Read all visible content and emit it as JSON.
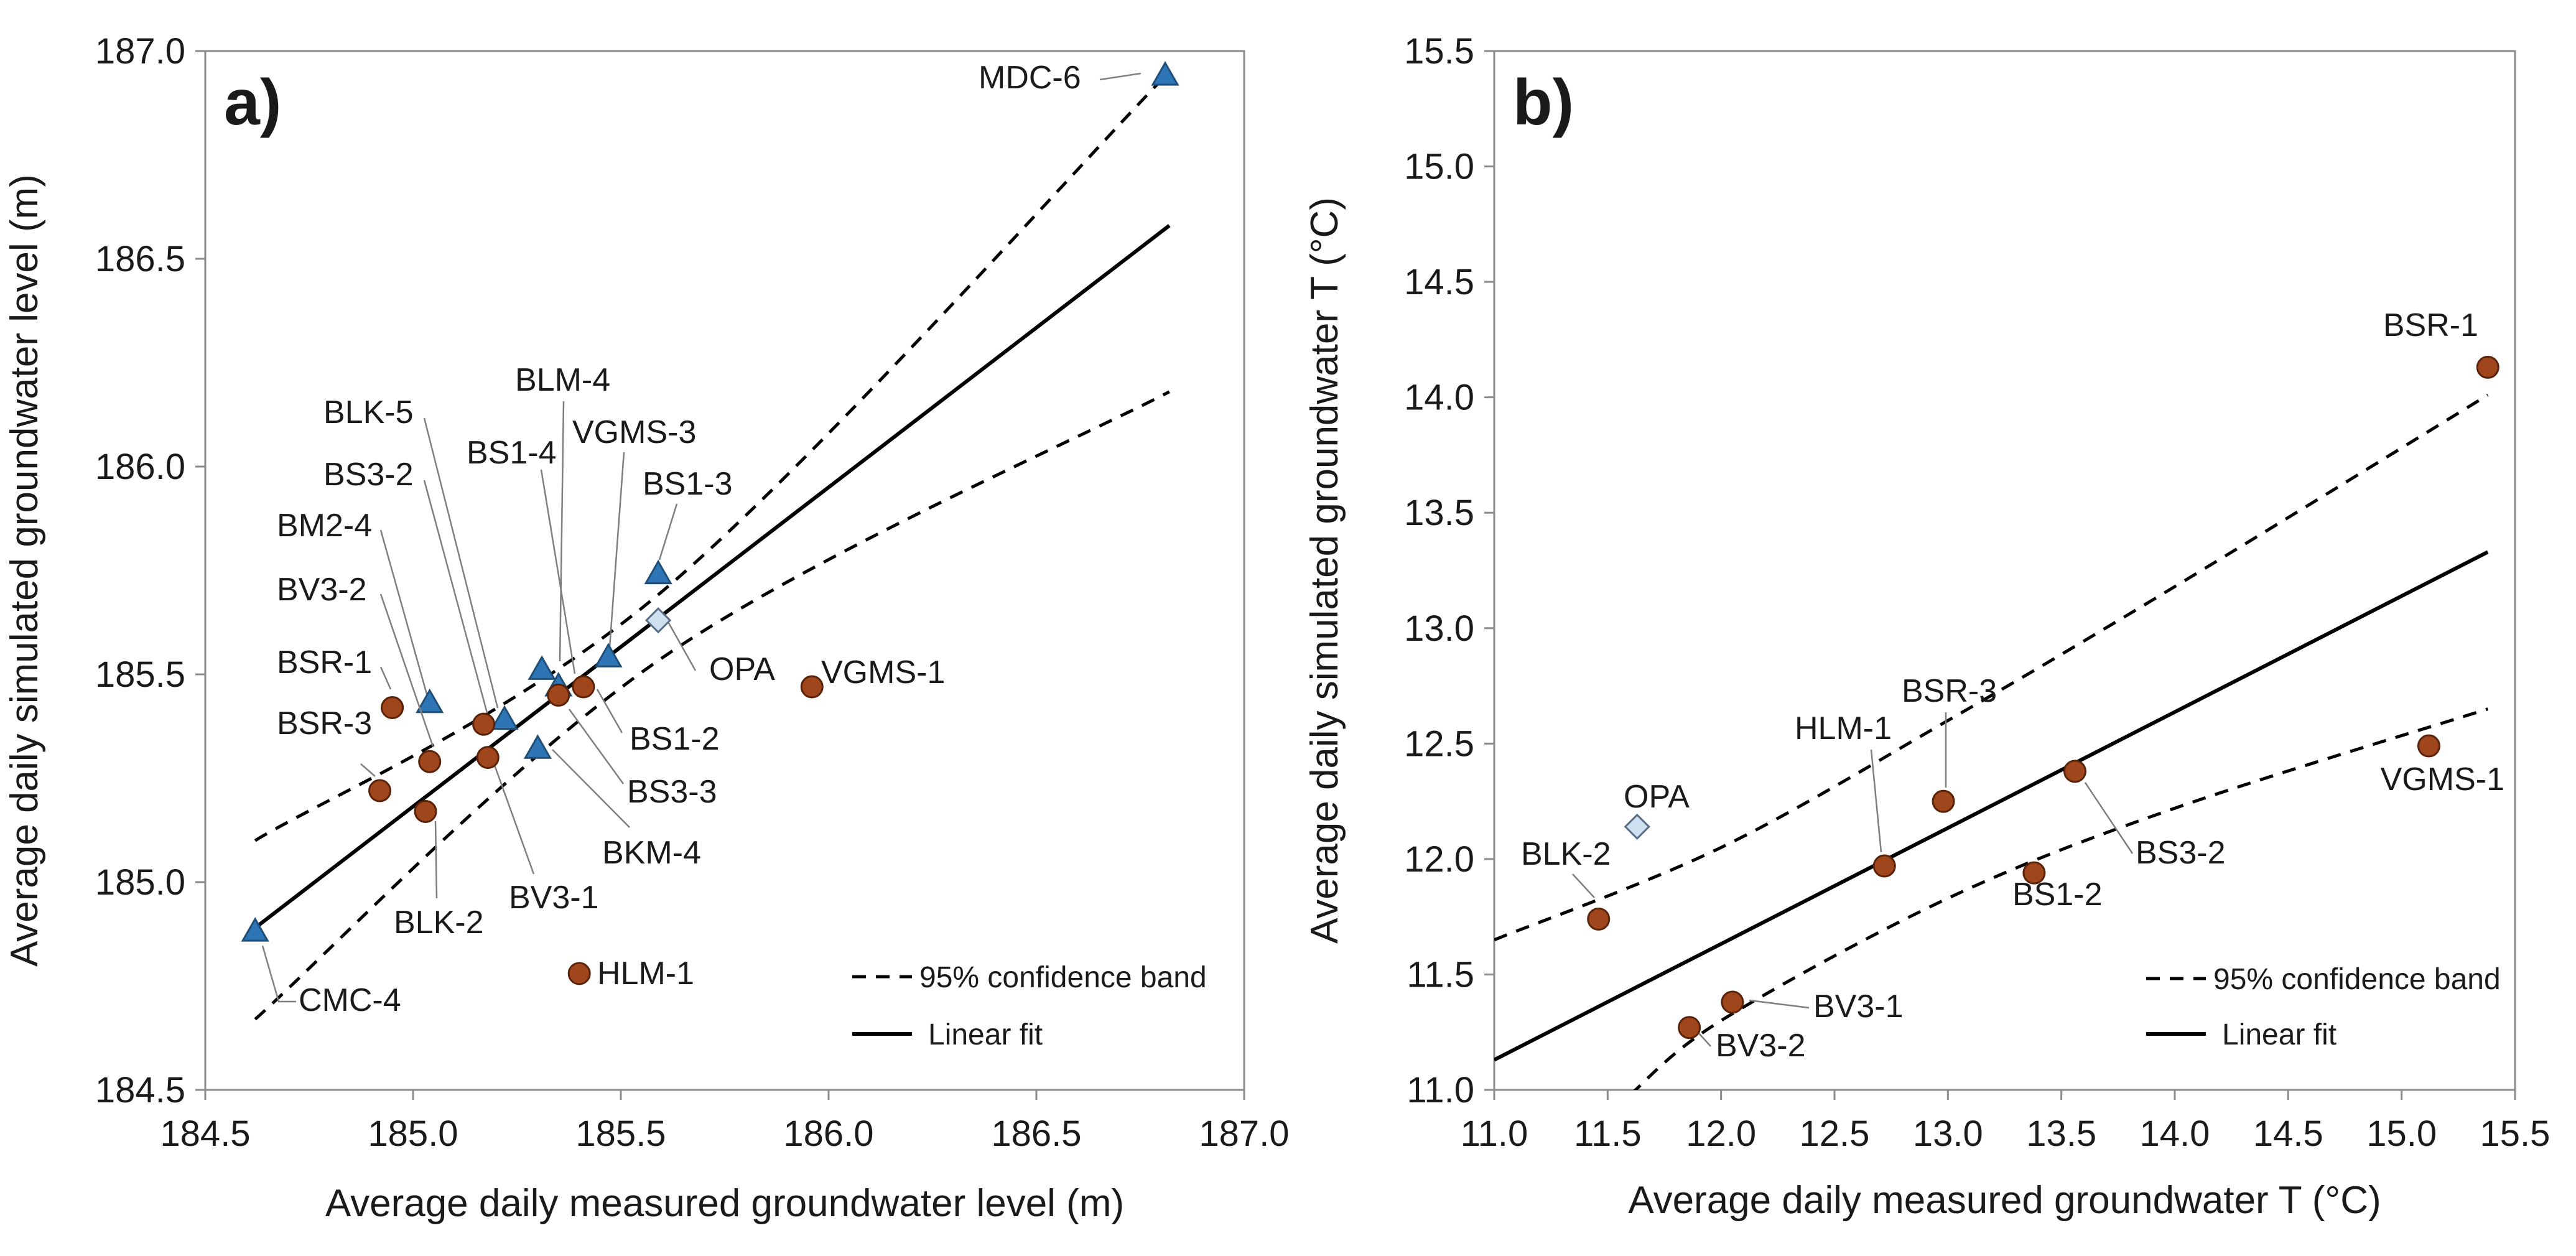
{
  "chart_data": [
    {
      "type": "scatter",
      "panel_label": "a)",
      "xlabel": "Average daily measured groundwater level (m)",
      "ylabel": "Average daily simulated groundwater level (m)",
      "xlim": [
        184.5,
        187.0
      ],
      "ylim": [
        184.5,
        187.0
      ],
      "xticks": [
        "184.5",
        "185.0",
        "185.5",
        "186.0",
        "186.5",
        "187.0"
      ],
      "yticks": [
        "184.5",
        "185.0",
        "185.5",
        "186.0",
        "186.5",
        "187.0"
      ],
      "legend": {
        "position": "bottom-right",
        "band_label": "95% confidence band",
        "fit_label": "Linear fit"
      },
      "fit_line": [
        [
          184.62,
          184.89
        ],
        [
          186.82,
          186.58
        ]
      ],
      "confidence_upper": [
        [
          184.62,
          185.1
        ],
        [
          185.6,
          185.7
        ],
        [
          186.82,
          186.95
        ]
      ],
      "confidence_lower": [
        [
          184.62,
          184.67
        ],
        [
          185.6,
          185.54
        ],
        [
          186.82,
          186.18
        ]
      ],
      "points": [
        {
          "label": "MDC-6",
          "x": 186.81,
          "y": 186.94,
          "marker": "triangle"
        },
        {
          "label": "CMC-4",
          "x": 184.62,
          "y": 184.88,
          "marker": "triangle"
        },
        {
          "label": "BLK-5",
          "x": 185.22,
          "y": 185.39,
          "marker": "triangle"
        },
        {
          "label": "BS3-2",
          "x": 185.17,
          "y": 185.38,
          "marker": "circle"
        },
        {
          "label": "BS1-4",
          "x": 185.35,
          "y": 185.47,
          "marker": "triangle"
        },
        {
          "label": "BLM-4",
          "x": 185.31,
          "y": 185.51,
          "marker": "triangle"
        },
        {
          "label": "VGMS-3",
          "x": 185.47,
          "y": 185.54,
          "marker": "triangle"
        },
        {
          "label": "BS1-3",
          "x": 185.59,
          "y": 185.74,
          "marker": "triangle"
        },
        {
          "label": "BM2-4",
          "x": 185.04,
          "y": 185.43,
          "marker": "triangle"
        },
        {
          "label": "BV3-2",
          "x": 185.04,
          "y": 185.29,
          "marker": "circle"
        },
        {
          "label": "BSR-1",
          "x": 184.95,
          "y": 185.42,
          "marker": "circle"
        },
        {
          "label": "BSR-3",
          "x": 184.92,
          "y": 185.22,
          "marker": "circle"
        },
        {
          "label": "BLK-2",
          "x": 185.03,
          "y": 185.17,
          "marker": "circle"
        },
        {
          "label": "BV3-1",
          "x": 185.18,
          "y": 185.3,
          "marker": "circle"
        },
        {
          "label": "BKM-4",
          "x": 185.3,
          "y": 185.32,
          "marker": "triangle"
        },
        {
          "label": "BS3-3",
          "x": 185.35,
          "y": 185.45,
          "marker": "circle"
        },
        {
          "label": "BS1-2",
          "x": 185.41,
          "y": 185.47,
          "marker": "circle"
        },
        {
          "label": "OPA",
          "x": 185.59,
          "y": 185.63,
          "marker": "diamond"
        },
        {
          "label": "VGMS-1",
          "x": 185.96,
          "y": 185.47,
          "marker": "circle"
        },
        {
          "label": "HLM-1",
          "x": 185.4,
          "y": 184.78,
          "marker": "circle"
        }
      ]
    },
    {
      "type": "scatter",
      "panel_label": "b)",
      "xlabel": "Average daily measured groundwater T (°C)",
      "ylabel": "Average daily simulated groundwater T (°C)",
      "xlim": [
        11.0,
        15.5
      ],
      "ylim": [
        11.0,
        15.5
      ],
      "xticks": [
        "11.0",
        "11.5",
        "12.0",
        "12.5",
        "13.0",
        "13.5",
        "14.0",
        "14.5",
        "15.0",
        "15.5"
      ],
      "yticks": [
        "11.0",
        "11.5",
        "12.0",
        "12.5",
        "13.0",
        "13.5",
        "14.0",
        "14.5",
        "15.0",
        "15.5"
      ],
      "legend": {
        "position": "bottom-right",
        "band_label": "95% confidence band",
        "fit_label": "Linear fit"
      },
      "fit_line": [
        [
          11.0,
          11.13
        ],
        [
          15.38,
          13.33
        ]
      ],
      "confidence_upper": [
        [
          11.0,
          11.65
        ],
        [
          12.0,
          12.05
        ],
        [
          13.0,
          12.6
        ],
        [
          14.0,
          13.18
        ],
        [
          15.38,
          14.01
        ]
      ],
      "confidence_lower": [
        [
          11.6,
          10.98
        ],
        [
          12.0,
          11.3
        ],
        [
          13.0,
          11.83
        ],
        [
          14.0,
          12.22
        ],
        [
          15.38,
          12.65
        ]
      ],
      "points": [
        {
          "label": "BSR-1",
          "x": 15.38,
          "y": 14.13,
          "marker": "circle"
        },
        {
          "label": "VGMS-1",
          "x": 15.12,
          "y": 12.49,
          "marker": "circle"
        },
        {
          "label": "BS3-2",
          "x": 13.56,
          "y": 12.38,
          "marker": "circle"
        },
        {
          "label": "BS1-2",
          "x": 13.38,
          "y": 11.94,
          "marker": "circle"
        },
        {
          "label": "BSR-3",
          "x": 12.98,
          "y": 12.25,
          "marker": "circle"
        },
        {
          "label": "HLM-1",
          "x": 12.72,
          "y": 11.97,
          "marker": "circle"
        },
        {
          "label": "OPA",
          "x": 11.63,
          "y": 12.14,
          "marker": "diamond"
        },
        {
          "label": "BLK-2",
          "x": 11.46,
          "y": 11.74,
          "marker": "circle"
        },
        {
          "label": "BV3-1",
          "x": 12.05,
          "y": 11.38,
          "marker": "circle"
        },
        {
          "label": "BV3-2",
          "x": 11.86,
          "y": 11.27,
          "marker": "circle"
        }
      ]
    }
  ]
}
